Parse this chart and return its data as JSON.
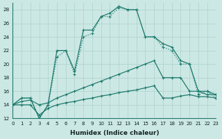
{
  "xlabel": "Humidex (Indice chaleur)",
  "xlim": [
    0,
    23
  ],
  "ylim": [
    12,
    29
  ],
  "yticks": [
    12,
    14,
    16,
    18,
    20,
    22,
    24,
    26,
    28
  ],
  "xticks": [
    0,
    1,
    2,
    3,
    4,
    5,
    6,
    7,
    8,
    9,
    10,
    11,
    12,
    13,
    14,
    15,
    16,
    17,
    18,
    19,
    20,
    21,
    22,
    23
  ],
  "bg_color": "#cce8e4",
  "line_color": "#1e7a6d",
  "grid_color": "#aad0cc",
  "series": {
    "s1_y": [
      14,
      15,
      15,
      12,
      14,
      22,
      22,
      19,
      25,
      25,
      27,
      27.5,
      28.5,
      28,
      28,
      24,
      24,
      23,
      22.5,
      20.5,
      20,
      16,
      16,
      15.5
    ],
    "s2_y": [
      14,
      15,
      15,
      12,
      14,
      21,
      22,
      18.5,
      24,
      24.5,
      27,
      27,
      28.3,
      28,
      28,
      24,
      24,
      22.5,
      22,
      20,
      20,
      15.5,
      16,
      15
    ],
    "s3_y": [
      14,
      14.5,
      14.7,
      14,
      14.3,
      15.0,
      15.5,
      16.0,
      16.5,
      17.0,
      17.5,
      18.0,
      18.5,
      19.0,
      19.5,
      20.0,
      20.5,
      18.0,
      18.0,
      18.0,
      16.0,
      16.0,
      15.5,
      15.5
    ],
    "s4_y": [
      14,
      14.0,
      14.0,
      12.5,
      13.5,
      14.0,
      14.3,
      14.5,
      14.8,
      15.0,
      15.3,
      15.5,
      15.8,
      16.0,
      16.2,
      16.5,
      16.8,
      15.0,
      15.0,
      15.3,
      15.5,
      15.2,
      15.2,
      15.0
    ]
  }
}
